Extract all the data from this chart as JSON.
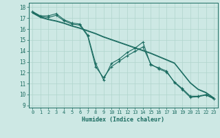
{
  "xlabel": "Humidex (Indice chaleur)",
  "bg_color": "#cde8e4",
  "grid_color": "#b0d4cc",
  "line_color": "#1a6b60",
  "xlim": [
    -0.5,
    23.5
  ],
  "ylim": [
    8.8,
    18.4
  ],
  "yticks": [
    9,
    10,
    11,
    12,
    13,
    14,
    15,
    16,
    17,
    18
  ],
  "xticks": [
    0,
    1,
    2,
    3,
    4,
    5,
    6,
    7,
    8,
    9,
    10,
    11,
    12,
    13,
    14,
    15,
    16,
    17,
    18,
    19,
    20,
    21,
    22,
    23
  ],
  "jagged1": [
    17.6,
    17.2,
    17.2,
    17.4,
    16.85,
    16.55,
    16.45,
    15.45,
    12.85,
    11.35,
    12.85,
    13.25,
    13.85,
    14.25,
    14.8,
    12.7,
    12.45,
    12.15,
    11.1,
    10.45,
    9.75,
    9.8,
    9.95,
    9.6
  ],
  "jagged2": [
    17.55,
    17.15,
    17.05,
    17.25,
    16.75,
    16.45,
    16.35,
    15.35,
    12.55,
    11.55,
    12.55,
    13.05,
    13.55,
    13.95,
    14.35,
    12.8,
    12.35,
    12.05,
    11.15,
    10.55,
    9.85,
    9.85,
    10.0,
    9.65
  ],
  "straight1": [
    17.5,
    17.1,
    16.9,
    16.75,
    16.55,
    16.3,
    16.1,
    15.85,
    15.6,
    15.3,
    15.05,
    14.8,
    14.55,
    14.3,
    14.05,
    13.8,
    13.5,
    13.2,
    12.9,
    12.0,
    11.1,
    10.5,
    10.2,
    9.7
  ],
  "straight2": [
    17.45,
    17.05,
    16.85,
    16.7,
    16.5,
    16.25,
    16.05,
    15.8,
    15.55,
    15.25,
    15.0,
    14.75,
    14.5,
    14.25,
    14.0,
    13.75,
    13.45,
    13.15,
    12.85,
    11.95,
    11.05,
    10.45,
    10.15,
    9.65
  ]
}
